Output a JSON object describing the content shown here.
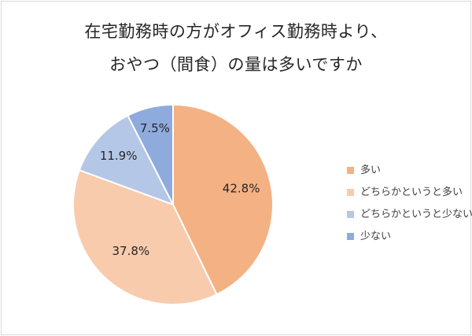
{
  "chart_data": {
    "type": "pie",
    "title": [
      "在宅勤務時の方がオフィス勤務時より、",
      "おやつ（間食）の量は多いですか"
    ],
    "categories": [
      "多い",
      "どちらかというと多い",
      "どちらかというと少ない",
      "少ない"
    ],
    "values": [
      42.8,
      37.8,
      11.9,
      7.5
    ],
    "value_labels": [
      "42.8%",
      "37.8%",
      "11.9%",
      "7.5%"
    ],
    "colors": [
      "#f4b183",
      "#f8cbad",
      "#b4c7e7",
      "#8faadc"
    ],
    "start_angle": "12 o'clock",
    "direction": "clockwise",
    "legend": "right"
  }
}
